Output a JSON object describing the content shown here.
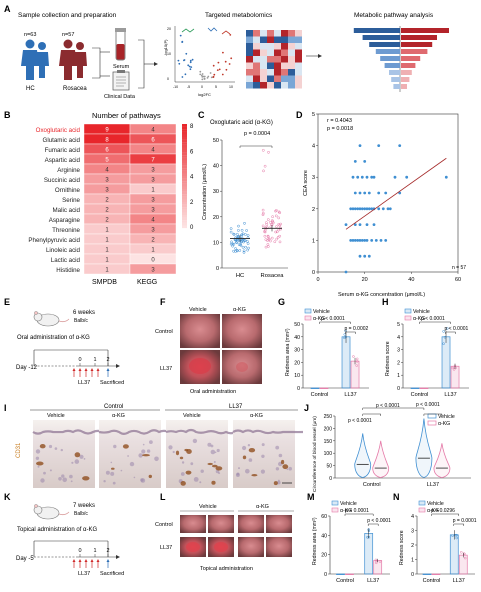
{
  "panels": {
    "A": {
      "letter": "A",
      "sample_title": "Sample collection and preparation",
      "metab_title": "Targeted metabolomics",
      "pathway_title": "Metabolic pathway analysis",
      "hc_n": "n=63",
      "ros_n": "n=57",
      "hc_label": "HC",
      "ros_label": "Rosacea",
      "serum_label": "Serum",
      "clinical_label": "Clinical Data",
      "volcano_ylabel": "-log10(P)",
      "volcano_xlabel": "log2FC",
      "volcano_ticks": [
        "-10",
        "-5",
        "0",
        "5",
        "10"
      ],
      "volcano_yticks": [
        "20",
        "10",
        "0"
      ]
    },
    "B": {
      "letter": "B",
      "title": "Number of pathways",
      "columns": [
        "SMPDB",
        "KEGG"
      ],
      "colorbar_ticks": [
        "8",
        "6",
        "4",
        "2",
        "0"
      ],
      "highlight_color": "#e8262b"
    },
    "C": {
      "letter": "C",
      "title": "Oxoglutaric acid (α-KG)",
      "pvalue": "p = 0.0004",
      "ylabel": "Concentration (μmol/L)",
      "groups": [
        "HC",
        "Rosacea"
      ]
    },
    "D": {
      "letter": "D",
      "r": "r = 0.4043",
      "p": "p = 0.0018",
      "ylabel": "CEA score",
      "xlabel": "Serum α-KG concentration (μmol/L)",
      "n": "n = 57"
    },
    "E": {
      "letter": "E",
      "mice_label": "6 weeks",
      "strain": "Balb/c",
      "treatment": "Oral administration of α-KG",
      "day": "Day -12",
      "timeline_ticks": [
        "0",
        "1",
        "2"
      ],
      "ll37": "LL37",
      "sacrificed": "Sacrificed"
    },
    "F": {
      "letter": "F",
      "col_labels": [
        "Vehicle",
        "α-KG"
      ],
      "row_labels": [
        "Control",
        "LL37"
      ],
      "caption": "Oral administration"
    },
    "G": {
      "letter": "G",
      "legend": [
        "Vehicle",
        "α-KG"
      ],
      "p1": "p = 0.0002",
      "p2": "p < 0.0001",
      "ylabel": "Redness area (mm²)",
      "groups": [
        "Control",
        "LL37"
      ]
    },
    "H": {
      "letter": "H",
      "legend": [
        "Vehicle",
        "α-KG"
      ],
      "p1": "p < 0.0001",
      "p2": "p < 0.0001",
      "ylabel": "Redness score",
      "groups": [
        "Control",
        "LL37"
      ]
    },
    "I": {
      "letter": "I",
      "group_labels": [
        "Control",
        "LL37"
      ],
      "col_labels": [
        "Vehicle",
        "α-KG",
        "Vehicle",
        "α-KG"
      ],
      "stain": "CD31"
    },
    "J": {
      "letter": "J",
      "legend": [
        "Vehicle",
        "α-KG"
      ],
      "p1": "p < 0.0001",
      "p2": "p < 0.0001",
      "p3": "p < 0.0001",
      "ylabel": "Circumference of blood vessel (μm)",
      "groups": [
        "Control",
        "LL37"
      ]
    },
    "K": {
      "letter": "K",
      "mice_label": "7 weeks",
      "strain": "Balb/c",
      "treatment": "Topical administration of α-KG",
      "day": "Day -5",
      "timeline_ticks": [
        "0",
        "1",
        "2"
      ],
      "ll37": "LL37",
      "sacrificed": "Sacrificed"
    },
    "L": {
      "letter": "L",
      "col_labels": [
        "Vehicle",
        "α-KG"
      ],
      "row_labels": [
        "Control",
        "LL37"
      ],
      "caption": "Topical administration"
    },
    "M": {
      "letter": "M",
      "legend": [
        "Vehicle",
        "α-KG"
      ],
      "p1": "p < 0.0001",
      "p2": "p < 0.0001",
      "ylabel": "Redness area (mm²)",
      "groups": [
        "Control",
        "LL37"
      ]
    },
    "N": {
      "letter": "N",
      "legend": [
        "Vehicle",
        "α-KG"
      ],
      "p1": "p = 0.0001",
      "p2": "p = 0.0296",
      "ylabel": "Redness score",
      "groups": [
        "Control",
        "LL37"
      ]
    }
  },
  "colors": {
    "vehicle": "#3f8fd2",
    "akg": "#e57aa8",
    "dark_red": "#b3161b",
    "heat_high": "#e8262b",
    "heat_low": "#fde3e3"
  },
  "chart_data": [
    {
      "type": "heatmap",
      "title": "Number of pathways",
      "rows": [
        "Oxoglutaric acid",
        "Glutamic acid",
        "Fumaric acid",
        "Aspartic acid",
        "Arginine",
        "Succinic acid",
        "Ornithine",
        "Serine",
        "Malic acid",
        "Asparagine",
        "Threonine",
        "Phenylpyruvic acid",
        "Linoleic acid",
        "Lactic acid",
        "Histidine"
      ],
      "columns": [
        "SMPDB",
        "KEGG"
      ],
      "values": [
        [
          9,
          4
        ],
        [
          8,
          6
        ],
        [
          6,
          4
        ],
        [
          5,
          7
        ],
        [
          4,
          3
        ],
        [
          3,
          3
        ],
        [
          3,
          1
        ],
        [
          2,
          3
        ],
        [
          2,
          3
        ],
        [
          2,
          4
        ],
        [
          1,
          3
        ],
        [
          1,
          2
        ],
        [
          1,
          1
        ],
        [
          1,
          0
        ],
        [
          1,
          3
        ]
      ],
      "colorbar_range": [
        0,
        8
      ]
    },
    {
      "type": "scatter",
      "title": "Oxoglutaric acid (α-KG)",
      "ylabel": "Concentration (μmol/L)",
      "ylim": [
        0,
        50
      ],
      "yticks": [
        0,
        10,
        20,
        30,
        40,
        50
      ],
      "categories": [
        "HC",
        "Rosacea"
      ],
      "series": [
        {
          "name": "HC",
          "mean": 11.5
        },
        {
          "name": "Rosacea",
          "mean": 15.5
        }
      ]
    },
    {
      "type": "scatter",
      "xlabel": "Serum α-KG concentration (μmol/L)",
      "ylabel": "CEA score",
      "xlim": [
        0,
        60
      ],
      "ylim": [
        0,
        5
      ],
      "xticks": [
        0,
        20,
        40,
        60
      ],
      "yticks": [
        0,
        1,
        2,
        3,
        4,
        5
      ],
      "points": [
        [
          14,
          1
        ],
        [
          15,
          1
        ],
        [
          16,
          1
        ],
        [
          17,
          1
        ],
        [
          18,
          1
        ],
        [
          19,
          1
        ],
        [
          20,
          1
        ],
        [
          21,
          1
        ],
        [
          23,
          1
        ],
        [
          25,
          1
        ],
        [
          27,
          1
        ],
        [
          29,
          1
        ],
        [
          12,
          1.5
        ],
        [
          16,
          1.5
        ],
        [
          18,
          1.5
        ],
        [
          21,
          1.5
        ],
        [
          24,
          1.5
        ],
        [
          14,
          2
        ],
        [
          15,
          2
        ],
        [
          16,
          2
        ],
        [
          17,
          2
        ],
        [
          18,
          2
        ],
        [
          19,
          2
        ],
        [
          20,
          2
        ],
        [
          21,
          2
        ],
        [
          22,
          2
        ],
        [
          23,
          2
        ],
        [
          24,
          2
        ],
        [
          26,
          2
        ],
        [
          28,
          2
        ],
        [
          30,
          2
        ],
        [
          31,
          2
        ],
        [
          16,
          2.5
        ],
        [
          18,
          2.5
        ],
        [
          20,
          2.5
        ],
        [
          22,
          2.5
        ],
        [
          26,
          2.5
        ],
        [
          29,
          2.5
        ],
        [
          35,
          2.5
        ],
        [
          15,
          3
        ],
        [
          17,
          3
        ],
        [
          19,
          3
        ],
        [
          21,
          3
        ],
        [
          23,
          3
        ],
        [
          24,
          3
        ],
        [
          33,
          3
        ],
        [
          38,
          3
        ],
        [
          55,
          3
        ],
        [
          16,
          3.5
        ],
        [
          20,
          3.5
        ],
        [
          18,
          4
        ],
        [
          26,
          4
        ],
        [
          35,
          4
        ],
        [
          18,
          0.5
        ],
        [
          20,
          0.5
        ],
        [
          22,
          0.5
        ],
        [
          12,
          0
        ]
      ],
      "fit_line": [
        [
          12,
          1.35
        ],
        [
          55,
          3.6
        ]
      ]
    },
    {
      "type": "bar",
      "ylabel": "Redness area (mm²)",
      "categories": [
        "Control",
        "LL37"
      ],
      "ylim": [
        0,
        50
      ],
      "yticks": [
        0,
        10,
        20,
        30,
        40,
        50
      ],
      "series": [
        {
          "name": "Vehicle",
          "values": [
            0,
            40
          ]
        },
        {
          "name": "α-KG",
          "values": [
            0,
            21
          ]
        }
      ]
    },
    {
      "type": "bar",
      "ylabel": "Redness score",
      "categories": [
        "Control",
        "LL37"
      ],
      "ylim": [
        0,
        5
      ],
      "yticks": [
        0,
        1,
        2,
        3,
        4,
        5
      ],
      "series": [
        {
          "name": "Vehicle",
          "values": [
            0,
            4
          ]
        },
        {
          "name": "α-KG",
          "values": [
            0,
            1.7
          ]
        }
      ]
    },
    {
      "type": "scatter",
      "ylabel": "Circumference of blood vessel (μm)",
      "categories": [
        "Control",
        "LL37"
      ],
      "ylim": [
        0,
        250
      ],
      "yticks": [
        0,
        50,
        100,
        150,
        200,
        250
      ],
      "series": [
        {
          "name": "Vehicle",
          "medians": [
            55,
            80
          ]
        },
        {
          "name": "α-KG",
          "medians": [
            40,
            40
          ]
        }
      ]
    },
    {
      "type": "bar",
      "ylabel": "Redness area (mm²)",
      "categories": [
        "Control",
        "LL37"
      ],
      "ylim": [
        0,
        60
      ],
      "yticks": [
        0,
        20,
        40,
        60
      ],
      "series": [
        {
          "name": "Vehicle",
          "values": [
            0,
            42
          ]
        },
        {
          "name": "α-KG",
          "values": [
            0,
            14
          ]
        }
      ]
    },
    {
      "type": "bar",
      "ylabel": "Redness score",
      "categories": [
        "Control",
        "LL37"
      ],
      "ylim": [
        0,
        4
      ],
      "yticks": [
        0,
        1,
        2,
        3,
        4
      ],
      "series": [
        {
          "name": "Vehicle",
          "values": [
            0,
            2.7
          ]
        },
        {
          "name": "α-KG",
          "values": [
            0,
            1.3
          ]
        }
      ]
    }
  ]
}
